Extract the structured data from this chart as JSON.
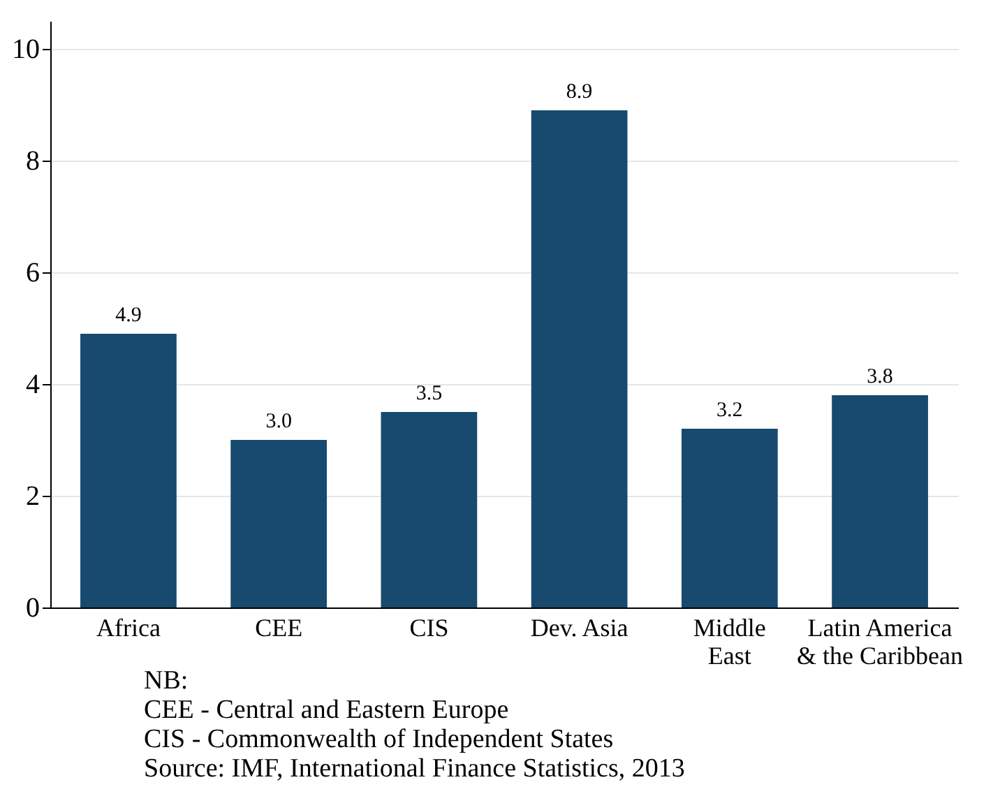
{
  "chart_data": {
    "type": "bar",
    "categories": [
      "Africa",
      "CEE",
      "CIS",
      "Dev. Asia",
      "Middle\nEast",
      "Latin America\n& the Caribbean"
    ],
    "values": [
      4.9,
      3.0,
      3.5,
      8.9,
      3.2,
      3.8
    ],
    "color": "#174a6e",
    "value_labels": [
      "4.9",
      "3.0",
      "3.5",
      "8.9",
      "3.2",
      "3.8"
    ],
    "ylim": [
      0,
      10.5
    ],
    "yticks": [
      0,
      2,
      4,
      6,
      8,
      10
    ],
    "grid": "y",
    "annotations": [
      "NB:",
      "CEE - Central and Eastern Europe",
      "CIS - Commonwealth of Independent States",
      "Source: IMF, International Finance Statistics, 2013"
    ]
  }
}
